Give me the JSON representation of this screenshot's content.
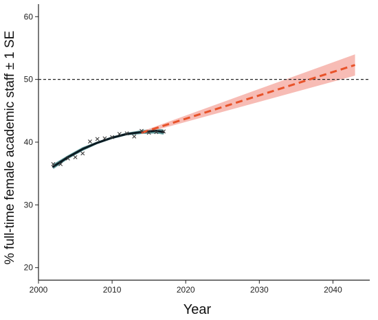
{
  "chart_data": {
    "type": "line",
    "title": "",
    "xlabel": "Year",
    "ylabel": "% full-time female academic staff ± 1 SE",
    "xlim": [
      2000,
      2045
    ],
    "ylim": [
      18,
      62
    ],
    "x_ticks": [
      2000,
      2010,
      2020,
      2030,
      2040
    ],
    "y_ticks": [
      20,
      30,
      40,
      50,
      60
    ],
    "grid": false,
    "legend": "none",
    "reference_line": {
      "y": 50,
      "style": "dashed",
      "color": "#222222"
    },
    "series": [
      {
        "kind": "observed-points",
        "marker": "x",
        "color": "#3a3a3a",
        "x": [
          2002,
          2003,
          2004,
          2005,
          2006,
          2007,
          2008,
          2009,
          2010,
          2011,
          2012,
          2013,
          2014,
          2015,
          2016,
          2017
        ],
        "y": [
          36.5,
          36.5,
          37.4,
          37.6,
          38.2,
          40.1,
          40.5,
          40.6,
          40.8,
          41.3,
          41.4,
          40.9,
          41.8,
          41.5,
          41.6,
          41.7
        ]
      },
      {
        "kind": "fitted-curve",
        "color": "#0b1a22",
        "band_color": "#4a8f90",
        "x": [
          2002,
          2004,
          2006,
          2008,
          2010,
          2012,
          2014,
          2016,
          2017
        ],
        "y": [
          36.1,
          37.6,
          38.9,
          39.9,
          40.7,
          41.3,
          41.6,
          41.8,
          41.6
        ],
        "lo": [
          35.7,
          37.3,
          38.6,
          39.7,
          40.5,
          41.1,
          41.3,
          41.4,
          41.2
        ],
        "hi": [
          36.5,
          37.9,
          39.2,
          40.1,
          40.9,
          41.5,
          41.9,
          42.2,
          42.0
        ]
      },
      {
        "kind": "projection",
        "color": "#e8532a",
        "band_color": "#f6b0a8",
        "x": [
          2014,
          2043
        ],
        "y": [
          41.5,
          52.3
        ],
        "lo": [
          41.3,
          50.6
        ],
        "hi": [
          41.7,
          54.0
        ]
      }
    ]
  }
}
